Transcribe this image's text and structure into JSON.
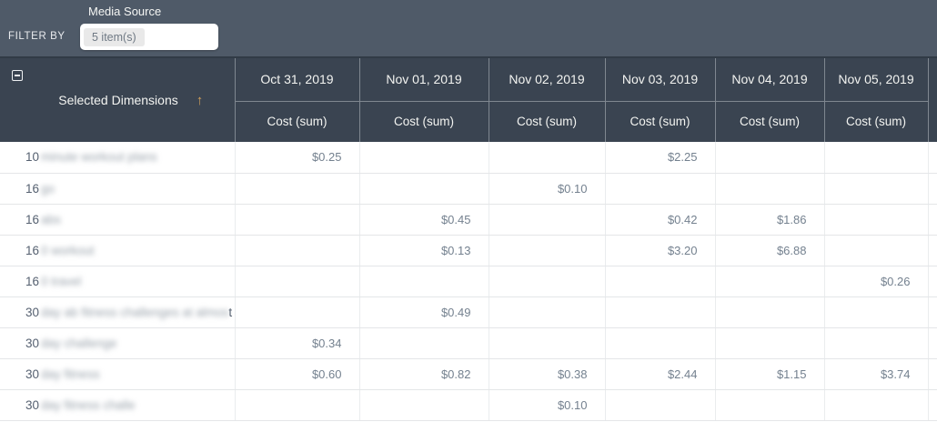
{
  "filter_bar": {
    "filter_by_label": "FILTER BY",
    "field_label": "Media Source",
    "field_value": "5 item(s)"
  },
  "table": {
    "dimensions_header": "Selected Dimensions",
    "sort_icon": "↑",
    "column_groups": [
      {
        "date": "Oct 31, 2019",
        "metric": "Cost (sum)"
      },
      {
        "date": "Nov 01, 2019",
        "metric": "Cost (sum)"
      },
      {
        "date": "Nov 02, 2019",
        "metric": "Cost (sum)"
      },
      {
        "date": "Nov 03, 2019",
        "metric": "Cost (sum)"
      },
      {
        "date": "Nov 04, 2019",
        "metric": "Cost (sum)"
      },
      {
        "date": "Nov 05, 2019",
        "metric": "Cost (sum)"
      }
    ],
    "rows": [
      {
        "label_prefix": "10",
        "label_redacted": "minute workout plans",
        "label_suffix": "",
        "values": [
          "$0.25",
          "",
          "",
          "$2.25",
          "",
          ""
        ]
      },
      {
        "label_prefix": "16",
        "label_redacted": "go",
        "label_suffix": "",
        "values": [
          "",
          "",
          "$0.10",
          "",
          "",
          ""
        ]
      },
      {
        "label_prefix": "16",
        "label_redacted": "abs",
        "label_suffix": "",
        "values": [
          "",
          "$0.45",
          "",
          "$0.42",
          "$1.86",
          ""
        ]
      },
      {
        "label_prefix": "16",
        "label_redacted": "0 workout",
        "label_suffix": "",
        "values": [
          "",
          "$0.13",
          "",
          "$3.20",
          "$6.88",
          ""
        ]
      },
      {
        "label_prefix": "16",
        "label_redacted": "0 travel",
        "label_suffix": "",
        "values": [
          "",
          "",
          "",
          "",
          "",
          "$0.26"
        ]
      },
      {
        "label_prefix": "30",
        "label_redacted": "day ab fitness challenges at almos",
        "label_suffix": "t",
        "values": [
          "",
          "$0.49",
          "",
          "",
          "",
          ""
        ]
      },
      {
        "label_prefix": "30",
        "label_redacted": "day challenge",
        "label_suffix": "",
        "values": [
          "$0.34",
          "",
          "",
          "",
          "",
          ""
        ]
      },
      {
        "label_prefix": "30",
        "label_redacted": "day fitness",
        "label_suffix": "",
        "values": [
          "$0.60",
          "$0.82",
          "$0.38",
          "$2.44",
          "$1.15",
          "$3.74"
        ]
      },
      {
        "label_prefix": "30",
        "label_redacted": "day fitness challe",
        "label_suffix": "",
        "values": [
          "",
          "",
          "$0.10",
          "",
          "",
          ""
        ]
      }
    ]
  },
  "colors": {
    "filter_bar_bg": "#4f5a68",
    "header_bg": "#3a4451",
    "sort_arrow": "#d2a05a",
    "value_text": "#74818f",
    "row_border": "#e4e6e8"
  }
}
